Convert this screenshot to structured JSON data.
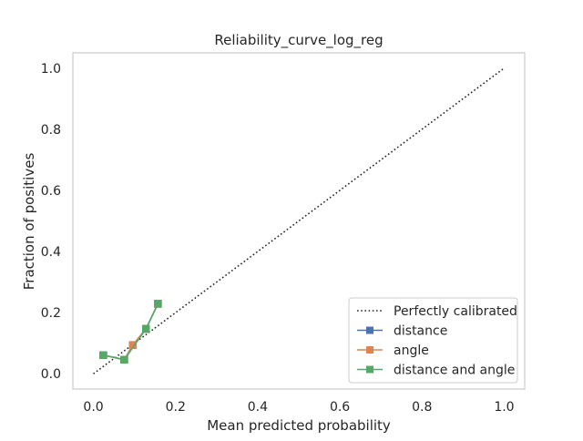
{
  "chart_data": {
    "type": "line",
    "title": "Reliability_curve_log_reg",
    "xlabel": "Mean predicted probability",
    "ylabel": "Fraction of positives",
    "xlim": [
      -0.05,
      1.05
    ],
    "ylim": [
      -0.05,
      1.05
    ],
    "xticks": [
      0.0,
      0.2,
      0.4,
      0.6,
      0.8,
      1.0
    ],
    "yticks": [
      0.0,
      0.2,
      0.4,
      0.6,
      0.8,
      1.0
    ],
    "xtick_labels": [
      "0.0",
      "0.2",
      "0.4",
      "0.6",
      "0.8",
      "1.0"
    ],
    "ytick_labels": [
      "0.0",
      "0.2",
      "0.4",
      "0.6",
      "0.8",
      "1.0"
    ],
    "grid": false,
    "legend_position": "lower-right",
    "reference_line": {
      "name": "Perfectly calibrated",
      "x": [
        0.0,
        1.0
      ],
      "y": [
        0.0,
        1.0
      ],
      "color": "#262626",
      "style": "dotted"
    },
    "series": [
      {
        "name": "distance",
        "color": "#4c72b0",
        "marker": "square",
        "x": [
          0.024,
          0.075,
          0.096,
          0.128,
          0.157
        ],
        "y": [
          0.061,
          0.046,
          0.094,
          0.147,
          0.229
        ]
      },
      {
        "name": "angle",
        "color": "#dd8452",
        "marker": "square",
        "x": [
          0.024,
          0.075,
          0.096,
          0.128,
          0.157
        ],
        "y": [
          0.061,
          0.046,
          0.094,
          0.147,
          0.229
        ]
      },
      {
        "name": "distance and angle",
        "color": "#55a868",
        "marker": "square",
        "x": [
          0.024,
          0.075,
          0.128,
          0.157
        ],
        "y": [
          0.061,
          0.046,
          0.147,
          0.229
        ]
      }
    ]
  }
}
